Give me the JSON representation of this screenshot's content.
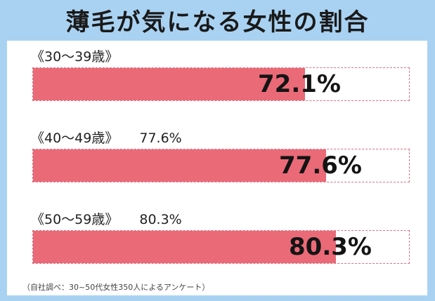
{
  "title": "薄毛が気になる女性の割合",
  "chart_data": {
    "type": "bar",
    "orientation": "horizontal",
    "categories": [
      "《30〜39歳》",
      "《40〜49歳》",
      "《50〜59歳》"
    ],
    "values": [
      72.1,
      77.6,
      80.3
    ],
    "value_labels": [
      "72.1%",
      "77.6%",
      "80.3%"
    ],
    "category_extra_labels": [
      "",
      "77.6%",
      "80.3%"
    ],
    "xlim": [
      0,
      100
    ],
    "unit": "%"
  },
  "note": "（自社調べ：30~50代女性350人によるアンケート）",
  "colors": {
    "frame": "#a9d2f2",
    "bar_fill": "#ea6a78",
    "track_border": "#e0707e"
  }
}
